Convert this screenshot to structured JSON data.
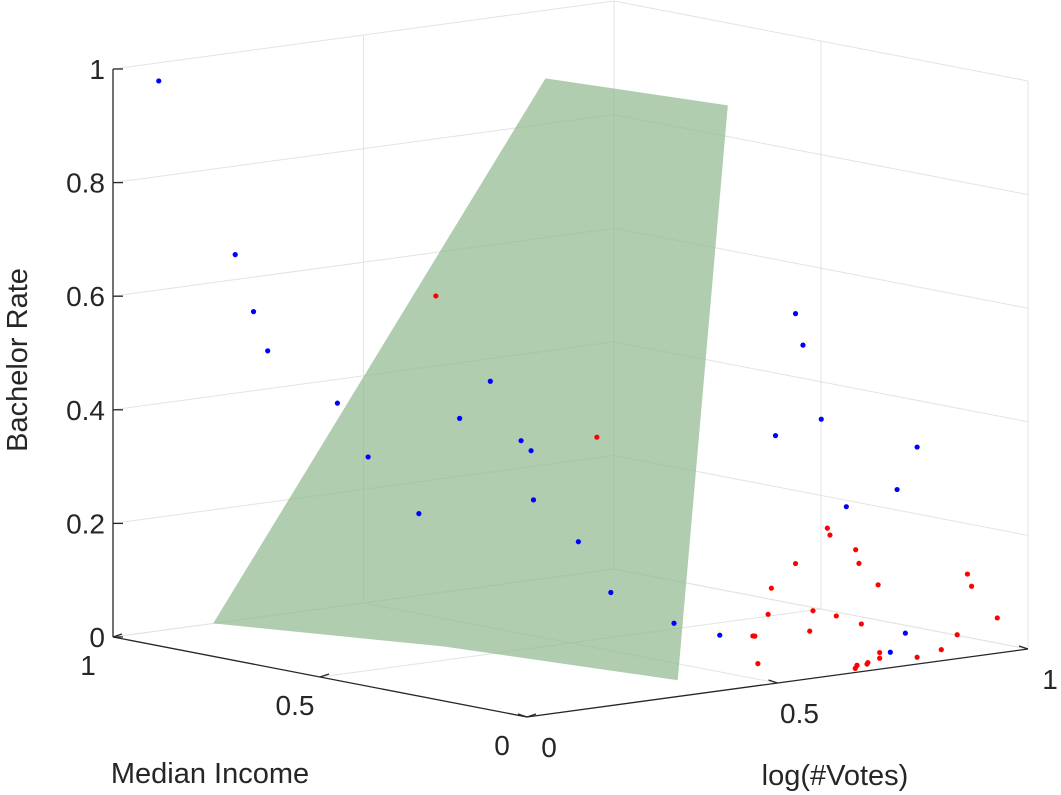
{
  "chart_data": {
    "type": "scatter3d",
    "xlabel": "Median Income",
    "ylabel": "log(#Votes)",
    "zlabel": "Bachelor Rate",
    "xlim": [
      0,
      1
    ],
    "ylim": [
      0,
      1
    ],
    "zlim": [
      0,
      1
    ],
    "x_ticks": [
      "0",
      "0.5",
      "1"
    ],
    "y_ticks": [
      "0",
      "0.5",
      "1"
    ],
    "z_ticks": [
      "0",
      "0.2",
      "0.4",
      "0.6",
      "0.8",
      "1"
    ],
    "grid": true,
    "colors": {
      "series_a": "#0000ff",
      "series_b": "#ff0000",
      "surface": "#8fb88f",
      "axis": "#262626",
      "grid": "#e3e3e3"
    },
    "series": [
      {
        "color": "#0000ff",
        "points": [
          {
            "x": 0.95,
            "y": 0.05,
            "z": 0.98
          },
          {
            "x": 0.85,
            "y": 0.12,
            "z": 0.68
          },
          {
            "x": 0.83,
            "y": 0.14,
            "z": 0.58
          },
          {
            "x": 0.82,
            "y": 0.16,
            "z": 0.51
          },
          {
            "x": 0.7,
            "y": 0.2,
            "z": 0.43
          },
          {
            "x": 0.65,
            "y": 0.22,
            "z": 0.34
          },
          {
            "x": 0.6,
            "y": 0.28,
            "z": 0.24
          },
          {
            "x": 0.55,
            "y": 0.32,
            "z": 0.41
          },
          {
            "x": 0.5,
            "y": 0.34,
            "z": 0.48
          },
          {
            "x": 0.45,
            "y": 0.36,
            "z": 0.38
          },
          {
            "x": 0.45,
            "y": 0.38,
            "z": 0.36
          },
          {
            "x": 0.42,
            "y": 0.36,
            "z": 0.28
          },
          {
            "x": 0.36,
            "y": 0.4,
            "z": 0.21
          },
          {
            "x": 0.33,
            "y": 0.44,
            "z": 0.12
          },
          {
            "x": 0.25,
            "y": 0.5,
            "z": 0.07
          },
          {
            "x": 0.2,
            "y": 0.55,
            "z": 0.05
          },
          {
            "x": 0.15,
            "y": 0.62,
            "z": 0.4
          },
          {
            "x": 0.1,
            "y": 0.67,
            "z": 0.43
          },
          {
            "x": 0.12,
            "y": 0.65,
            "z": 0.56
          },
          {
            "x": 0.15,
            "y": 0.66,
            "z": 0.61
          },
          {
            "x": 0.05,
            "y": 0.7,
            "z": 0.0
          },
          {
            "x": 0.1,
            "y": 0.72,
            "z": 0.27
          },
          {
            "x": 0.05,
            "y": 0.78,
            "z": 0.3
          },
          {
            "x": 0.05,
            "y": 0.82,
            "z": 0.37
          },
          {
            "x": 0.03,
            "y": 0.78,
            "z": 0.05
          },
          {
            "x": 0.03,
            "y": 0.75,
            "z": 0.02
          }
        ]
      },
      {
        "color": "#ff0000",
        "points": [
          {
            "x": 0.68,
            "y": 0.38,
            "z": 0.6
          },
          {
            "x": 0.4,
            "y": 0.47,
            "z": 0.38
          },
          {
            "x": 0.12,
            "y": 0.55,
            "z": 0.06
          },
          {
            "x": 0.12,
            "y": 0.56,
            "z": 0.01
          },
          {
            "x": 0.05,
            "y": 0.7,
            "z": 0.0
          },
          {
            "x": 0.05,
            "y": 0.72,
            "z": 0.0
          },
          {
            "x": 0.06,
            "y": 0.73,
            "z": 0.0
          },
          {
            "x": 0.15,
            "y": 0.66,
            "z": 0.17
          },
          {
            "x": 0.18,
            "y": 0.63,
            "z": 0.08
          },
          {
            "x": 0.2,
            "y": 0.62,
            "z": 0.04
          },
          {
            "x": 0.16,
            "y": 0.62,
            "z": 0.13
          },
          {
            "x": 0.12,
            "y": 0.67,
            "z": 0.09
          },
          {
            "x": 0.14,
            "y": 0.68,
            "z": 0.05
          },
          {
            "x": 0.1,
            "y": 0.75,
            "z": 0.06
          },
          {
            "x": 0.08,
            "y": 0.77,
            "z": 0.0
          },
          {
            "x": 0.08,
            "y": 0.77,
            "z": 0.01
          },
          {
            "x": 0.2,
            "y": 0.77,
            "z": 0.2
          },
          {
            "x": 0.17,
            "y": 0.74,
            "z": 0.22
          },
          {
            "x": 0.12,
            "y": 0.8,
            "z": 0.12
          },
          {
            "x": 0.05,
            "y": 0.82,
            "z": 0.0
          },
          {
            "x": 0.04,
            "y": 0.86,
            "z": 0.01
          },
          {
            "x": 0.05,
            "y": 0.9,
            "z": 0.03
          },
          {
            "x": 0.05,
            "y": 0.98,
            "z": 0.05
          },
          {
            "x": 0.1,
            "y": 0.97,
            "z": 0.1
          },
          {
            "x": 0.11,
            "y": 0.97,
            "z": 0.12
          },
          {
            "x": 0.13,
            "y": 0.77,
            "z": 0.16
          },
          {
            "x": 0.15,
            "y": 0.78,
            "z": 0.18
          },
          {
            "x": 0.1,
            "y": 0.7,
            "z": 0.08
          },
          {
            "x": 0.03,
            "y": 0.68,
            "z": 0.0
          }
        ]
      }
    ],
    "surface": {
      "color": "#8fb88f",
      "opacity": 0.7,
      "corners": [
        {
          "x": 1,
          "y": 0.2,
          "z": 0.0
        },
        {
          "x": 0.6,
          "y": 0.33,
          "z": 0.0
        },
        {
          "x": 0.12,
          "y": 0.4,
          "z": 0.0
        },
        {
          "x": 0.12,
          "y": 0.5,
          "z": 1.0
        },
        {
          "x": 0.5,
          "y": 0.45,
          "z": 1.0
        }
      ]
    }
  }
}
